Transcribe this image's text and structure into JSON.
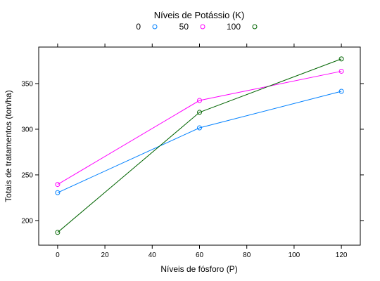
{
  "chart_data": {
    "type": "line",
    "title": "",
    "xlabel": "Níveis de fósforo (P)",
    "ylabel": "Totais de tratamentos (ton/ha)",
    "x": [
      0,
      60,
      120
    ],
    "series": [
      {
        "name": "0",
        "color": "#0080ff",
        "values": [
          230.5,
          301.5,
          341.5
        ]
      },
      {
        "name": "50",
        "color": "#ff00ff",
        "values": [
          239.5,
          331.5,
          363.5
        ]
      },
      {
        "name": "100",
        "color": "#006400",
        "values": [
          187,
          318.5,
          377
        ]
      }
    ],
    "xlim": [
      -8,
      128
    ],
    "ylim": [
      173,
      390
    ],
    "xticks": [
      0,
      20,
      40,
      60,
      80,
      100,
      120
    ],
    "yticks": [
      200,
      250,
      300,
      350
    ],
    "legend": {
      "title": "Níveis de Potássio (K)",
      "placement": "top",
      "marker": "circle"
    },
    "grid": false
  }
}
